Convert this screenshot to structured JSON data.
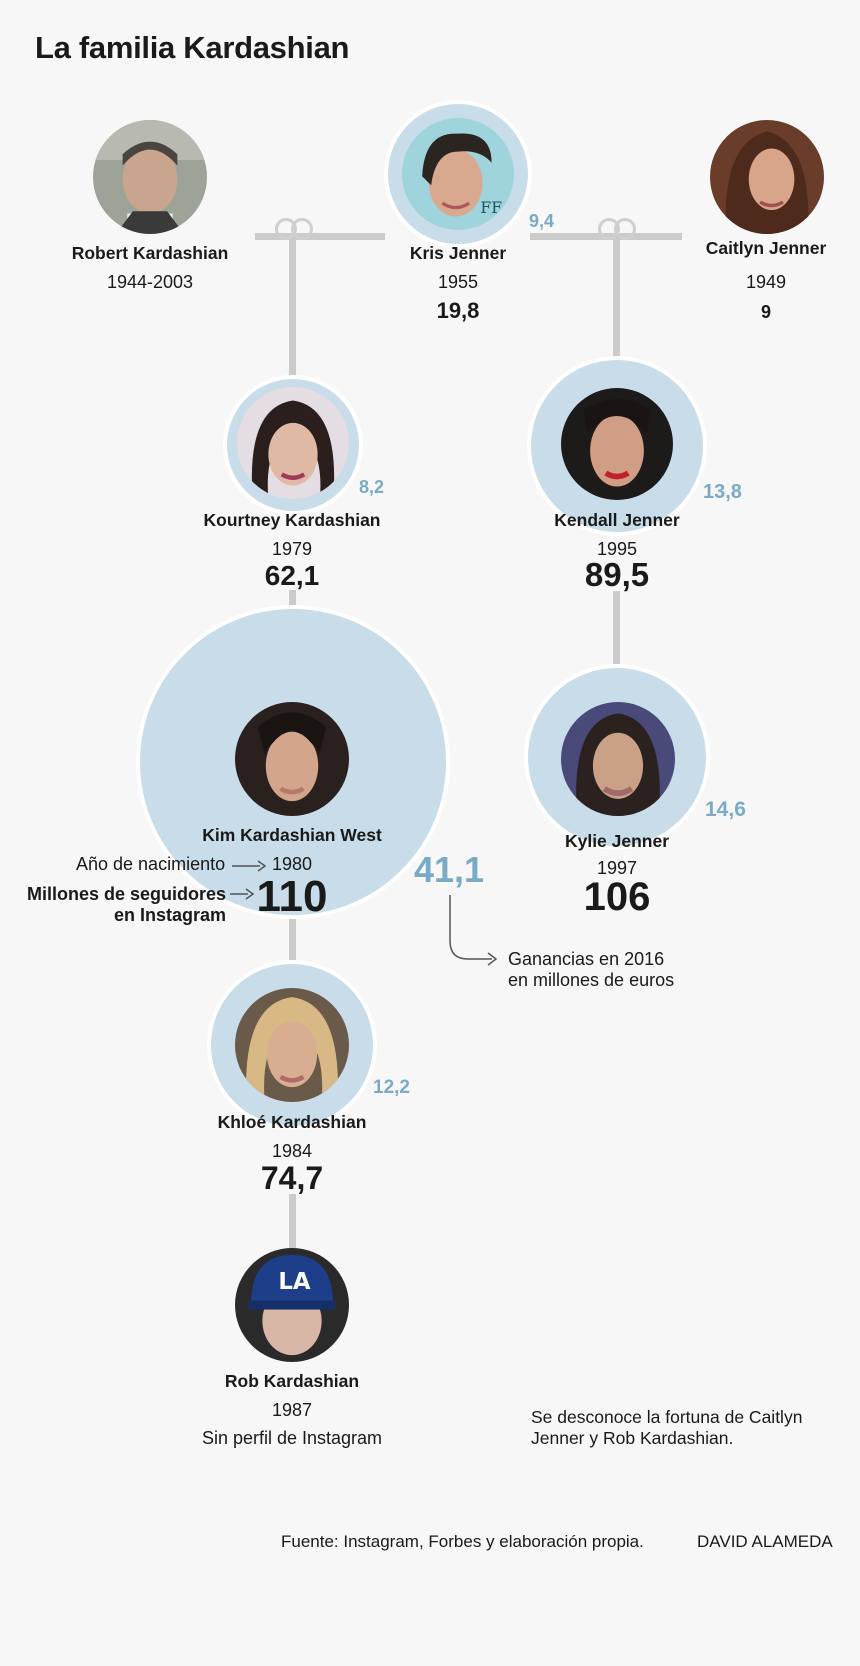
{
  "title": "La familia Kardashian",
  "people": {
    "robert": {
      "name": "Robert Kardashian",
      "years": "1944-2003"
    },
    "kris": {
      "name": "Kris Jenner",
      "year": "1955",
      "followers": "19,8",
      "earnings": "9,4"
    },
    "caitlyn": {
      "name": "Caitlyn Jenner",
      "year": "1949",
      "followers": "9"
    },
    "kourtney": {
      "name": "Kourtney Kardashian",
      "year": "1979",
      "followers": "62,1",
      "earnings": "8,2"
    },
    "kendall": {
      "name": "Kendall Jenner",
      "year": "1995",
      "followers": "89,5",
      "earnings": "13,8"
    },
    "kim": {
      "name": "Kim Kardashian West",
      "year": "1980",
      "followers": "110",
      "earnings": "41,1"
    },
    "kylie": {
      "name": "Kylie Jenner",
      "year": "1997",
      "followers": "106",
      "earnings": "14,6"
    },
    "khloe": {
      "name": "Khloé Kardashian",
      "year": "1984",
      "followers": "74,7",
      "earnings": "12,2"
    },
    "rob": {
      "name": "Rob Kardashian",
      "year": "1987",
      "no_profile": "Sin perfil de Instagram"
    }
  },
  "legend": {
    "birth_year": "Año de nacimiento",
    "followers_line1": "Millones de seguidores",
    "followers_line2": "en Instagram",
    "earnings_line1": "Ganancias en 2016",
    "earnings_line2": "en millones de euros"
  },
  "note": "Se desconoce la fortuna de Caitlyn Jenner y Rob Kardashian.",
  "source": "Fuente: Instagram, Forbes y elaboración propia.",
  "author": "DAVID ALAMEDA",
  "colors": {
    "bubble": "#c8dde9",
    "earnings": "#7aaac8",
    "connector": "#cbcbcb",
    "background": "#f7f7f7"
  }
}
